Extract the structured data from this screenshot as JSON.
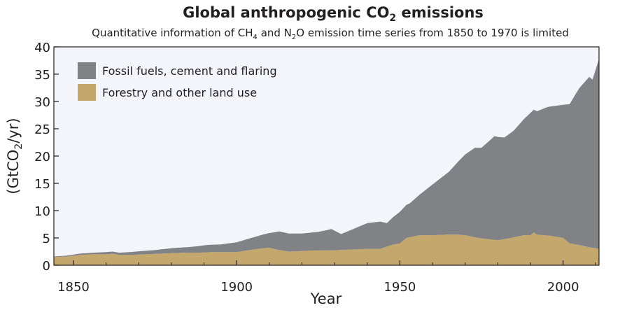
{
  "chart_data": {
    "type": "area",
    "stacked": true,
    "title": {
      "pre": "Global anthropogenic CO",
      "sub": "2",
      "post": " emissions"
    },
    "subtitle": {
      "p1": "Quantitative information of CH",
      "s1": "4",
      "p2": " and N",
      "s2": "2",
      "p3": "O emission time series from 1850 to 1970 is limited"
    },
    "xlabel": "Year",
    "ylabel": {
      "pre": "(GtCO",
      "sub": "2",
      "post": "/yr)"
    },
    "xlim": [
      1844,
      2011
    ],
    "ylim": [
      0,
      40
    ],
    "x_ticks": [
      1850,
      1900,
      1950,
      2000
    ],
    "y_ticks": [
      0,
      5,
      10,
      15,
      20,
      25,
      30,
      35,
      40
    ],
    "x_tick_labels": [
      "1850",
      "1900",
      "1950",
      "2000"
    ],
    "y_tick_labels": [
      "0",
      "5",
      "10",
      "15",
      "20",
      "25",
      "30",
      "35",
      "40"
    ],
    "grid": false,
    "legend_position": "top-left",
    "background_color": "#f4f4fb",
    "series": [
      {
        "name": "Forestry and other land use",
        "color": "#c4a76c",
        "x": [
          1844,
          1848,
          1852,
          1856,
          1860,
          1862,
          1864,
          1868,
          1872,
          1876,
          1880,
          1884,
          1888,
          1892,
          1896,
          1900,
          1904,
          1908,
          1910,
          1912,
          1916,
          1920,
          1924,
          1928,
          1932,
          1936,
          1940,
          1944,
          1948,
          1950,
          1952,
          1956,
          1960,
          1964,
          1968,
          1970,
          1974,
          1978,
          1980,
          1984,
          1988,
          1990,
          1991,
          1992,
          1996,
          2000,
          2002,
          2004,
          2008,
          2011
        ],
        "values": [
          1.5,
          1.6,
          1.9,
          2.0,
          2.0,
          2.1,
          1.9,
          1.9,
          2.0,
          2.1,
          2.2,
          2.3,
          2.3,
          2.4,
          2.4,
          2.4,
          2.8,
          3.1,
          3.2,
          2.9,
          2.5,
          2.6,
          2.7,
          2.7,
          2.8,
          2.9,
          3.0,
          3.0,
          3.8,
          4.0,
          5.0,
          5.5,
          5.5,
          5.6,
          5.6,
          5.5,
          5.0,
          4.7,
          4.6,
          5.0,
          5.5,
          5.5,
          6.0,
          5.6,
          5.4,
          5.0,
          4.0,
          3.8,
          3.3,
          3.0
        ]
      },
      {
        "name": "Fossil fuels, cement and flaring",
        "color": "#808285",
        "x": [
          1844,
          1850,
          1856,
          1860,
          1864,
          1870,
          1875,
          1880,
          1885,
          1890,
          1895,
          1900,
          1905,
          1910,
          1913,
          1916,
          1920,
          1925,
          1929,
          1932,
          1936,
          1940,
          1944,
          1946,
          1950,
          1953,
          1956,
          1960,
          1965,
          1970,
          1973,
          1975,
          1979,
          1980,
          1982,
          1985,
          1990,
          1992,
          1995,
          2000,
          2002,
          2005,
          2008,
          2009,
          2011
        ],
        "values": [
          0.1,
          0.2,
          0.3,
          0.4,
          0.4,
          0.6,
          0.7,
          0.9,
          1.0,
          1.3,
          1.4,
          1.8,
          2.2,
          2.7,
          3.4,
          3.3,
          3.2,
          3.4,
          3.9,
          2.9,
          3.8,
          4.7,
          5.0,
          4.3,
          5.8,
          6.2,
          7.4,
          9.3,
          11.5,
          14.8,
          16.4,
          16.6,
          19.0,
          18.9,
          18.6,
          19.6,
          22.4,
          22.6,
          23.5,
          24.4,
          25.5,
          28.8,
          31.2,
          30.8,
          34.8
        ]
      }
    ]
  }
}
